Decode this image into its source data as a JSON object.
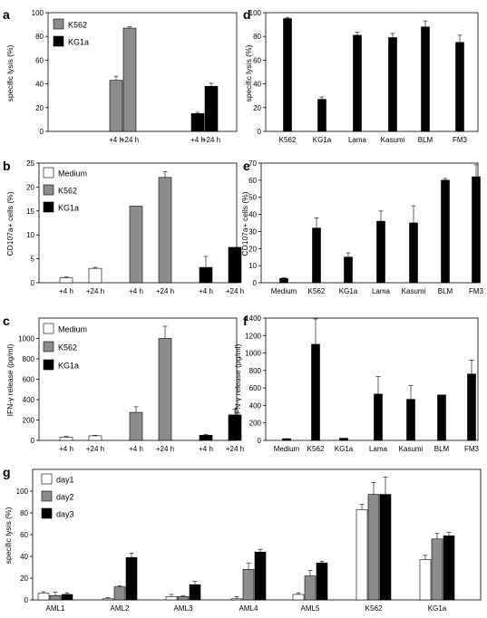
{
  "colors": {
    "white": "#ffffff",
    "grey": "#8c8c8c",
    "black": "#000000"
  },
  "chart_data": [
    {
      "panel": "a",
      "type": "bar",
      "ylabel": "specific lysis (%)",
      "ylim": [
        0,
        100
      ],
      "yticks": [
        0,
        20,
        40,
        60,
        80,
        100
      ],
      "categories": [
        "+4 h",
        "+24 h",
        "+4 h",
        "+24 h"
      ],
      "legend": [
        {
          "name": "K562",
          "color": "grey"
        },
        {
          "name": "KG1a",
          "color": "black"
        }
      ],
      "bars": [
        {
          "value": 43,
          "err": 3.5,
          "color": "grey"
        },
        {
          "value": 87,
          "err": 1,
          "color": "grey"
        },
        {
          "value": 15,
          "err": 1,
          "color": "black"
        },
        {
          "value": 38,
          "err": 2.5,
          "color": "black"
        }
      ]
    },
    {
      "panel": "b",
      "type": "bar",
      "ylabel": "CD107a+ cells (%)",
      "ylim": [
        0,
        25
      ],
      "yticks": [
        0,
        5,
        10,
        15,
        20,
        25
      ],
      "categories": [
        "+4 h",
        "+24 h",
        "+4 h",
        "+24 h",
        "+4 h",
        "+24 h"
      ],
      "legend": [
        {
          "name": "Medium",
          "color": "white"
        },
        {
          "name": "K562",
          "color": "grey"
        },
        {
          "name": "KG1a",
          "color": "black"
        }
      ],
      "bars": [
        {
          "value": 1,
          "err": 0.2,
          "color": "white"
        },
        {
          "value": 3,
          "err": 0.2,
          "color": "white"
        },
        {
          "value": 16,
          "err": 0,
          "color": "grey"
        },
        {
          "value": 22,
          "err": 1.2,
          "color": "grey"
        },
        {
          "value": 3.2,
          "err": 2.3,
          "color": "black"
        },
        {
          "value": 7.4,
          "err": 0,
          "color": "black"
        }
      ]
    },
    {
      "panel": "c",
      "type": "bar",
      "ylabel": "IFN-γ release (pg/ml)",
      "ylim": [
        0,
        1200
      ],
      "yticks": [
        0,
        200,
        400,
        600,
        800,
        1000
      ],
      "categories": [
        "+4 h",
        "+24 h",
        "+4 h",
        "+24 h",
        "+4 h",
        "+24 h"
      ],
      "legend": [
        {
          "name": "Medium",
          "color": "white"
        },
        {
          "name": "K562",
          "color": "grey"
        },
        {
          "name": "KG1a",
          "color": "black"
        }
      ],
      "bars": [
        {
          "value": 30,
          "err": 8,
          "color": "white"
        },
        {
          "value": 45,
          "err": 5,
          "color": "white"
        },
        {
          "value": 275,
          "err": 55,
          "color": "grey"
        },
        {
          "value": 1000,
          "err": 120,
          "color": "grey"
        },
        {
          "value": 50,
          "err": 8,
          "color": "black"
        },
        {
          "value": 250,
          "err": 55,
          "color": "black"
        }
      ]
    },
    {
      "panel": "d",
      "type": "bar",
      "ylabel": "specific lysis (%)",
      "ylim": [
        0,
        100
      ],
      "yticks": [
        0,
        20,
        40,
        60,
        80,
        100
      ],
      "categories": [
        "K562",
        "KG1a",
        "Lama",
        "Kasumi",
        "BLM",
        "FM3"
      ],
      "bars": [
        {
          "value": 95,
          "err": 1,
          "color": "black"
        },
        {
          "value": 27,
          "err": 2,
          "color": "black"
        },
        {
          "value": 81,
          "err": 2.5,
          "color": "black"
        },
        {
          "value": 79,
          "err": 3.5,
          "color": "black"
        },
        {
          "value": 88,
          "err": 5,
          "color": "black"
        },
        {
          "value": 75,
          "err": 6,
          "color": "black"
        }
      ]
    },
    {
      "panel": "e",
      "type": "bar",
      "ylabel": "CD107a+ cells (%)",
      "ylim": [
        0,
        70
      ],
      "yticks": [
        0,
        10,
        20,
        30,
        40,
        50,
        60,
        70
      ],
      "categories": [
        "Medium",
        "K562",
        "KG1a",
        "Lama",
        "Kasumi",
        "BLM",
        "FM3"
      ],
      "bars": [
        {
          "value": 2.5,
          "err": 0.5,
          "color": "black"
        },
        {
          "value": 32,
          "err": 6,
          "color": "black"
        },
        {
          "value": 15,
          "err": 2.5,
          "color": "black"
        },
        {
          "value": 36,
          "err": 6,
          "color": "black"
        },
        {
          "value": 35,
          "err": 10,
          "color": "black"
        },
        {
          "value": 60,
          "err": 1,
          "color": "black"
        },
        {
          "value": 62,
          "err": 7,
          "color": "black"
        }
      ]
    },
    {
      "panel": "f",
      "type": "bar",
      "ylabel": "IFN-γ release (pg/ml)",
      "ylim": [
        0,
        1400
      ],
      "yticks": [
        0,
        200,
        400,
        600,
        800,
        1000,
        1200,
        1400
      ],
      "categories": [
        "Medium",
        "K562",
        "KG1a",
        "Lama",
        "Kasumi",
        "BLM",
        "FM3"
      ],
      "bars": [
        {
          "value": 20,
          "err": 0,
          "color": "black"
        },
        {
          "value": 1100,
          "err": 290,
          "color": "black"
        },
        {
          "value": 25,
          "err": 0,
          "color": "black"
        },
        {
          "value": 530,
          "err": 200,
          "color": "black"
        },
        {
          "value": 470,
          "err": 160,
          "color": "black"
        },
        {
          "value": 520,
          "err": 0,
          "color": "black"
        },
        {
          "value": 760,
          "err": 160,
          "color": "black"
        }
      ]
    },
    {
      "panel": "g",
      "type": "bar",
      "ylabel": "specific lysis (%)",
      "ylim": [
        0,
        120
      ],
      "yticks": [
        0,
        20,
        40,
        60,
        80,
        100
      ],
      "categories": [
        "AML1",
        "AML2",
        "AML3",
        "AML4",
        "AML5",
        "K562",
        "KG1a"
      ],
      "legend": [
        {
          "name": "day1",
          "color": "white"
        },
        {
          "name": "day2",
          "color": "grey"
        },
        {
          "name": "day3",
          "color": "black"
        }
      ],
      "series": [
        {
          "name": "day1",
          "color": "white",
          "values": [
            6,
            1,
            3,
            1,
            5,
            83,
            37
          ],
          "errs": [
            1.5,
            1,
            2,
            2,
            1.5,
            5,
            4
          ]
        },
        {
          "name": "day2",
          "color": "grey",
          "values": [
            4,
            12,
            3,
            28,
            22,
            97,
            56
          ],
          "errs": [
            3,
            1,
            1,
            6,
            5,
            11,
            5
          ]
        },
        {
          "name": "day3",
          "color": "black",
          "values": [
            5,
            39,
            14,
            44,
            34,
            97,
            59
          ],
          "errs": [
            1.5,
            4,
            3,
            2.5,
            1.5,
            16,
            3
          ]
        }
      ]
    }
  ]
}
